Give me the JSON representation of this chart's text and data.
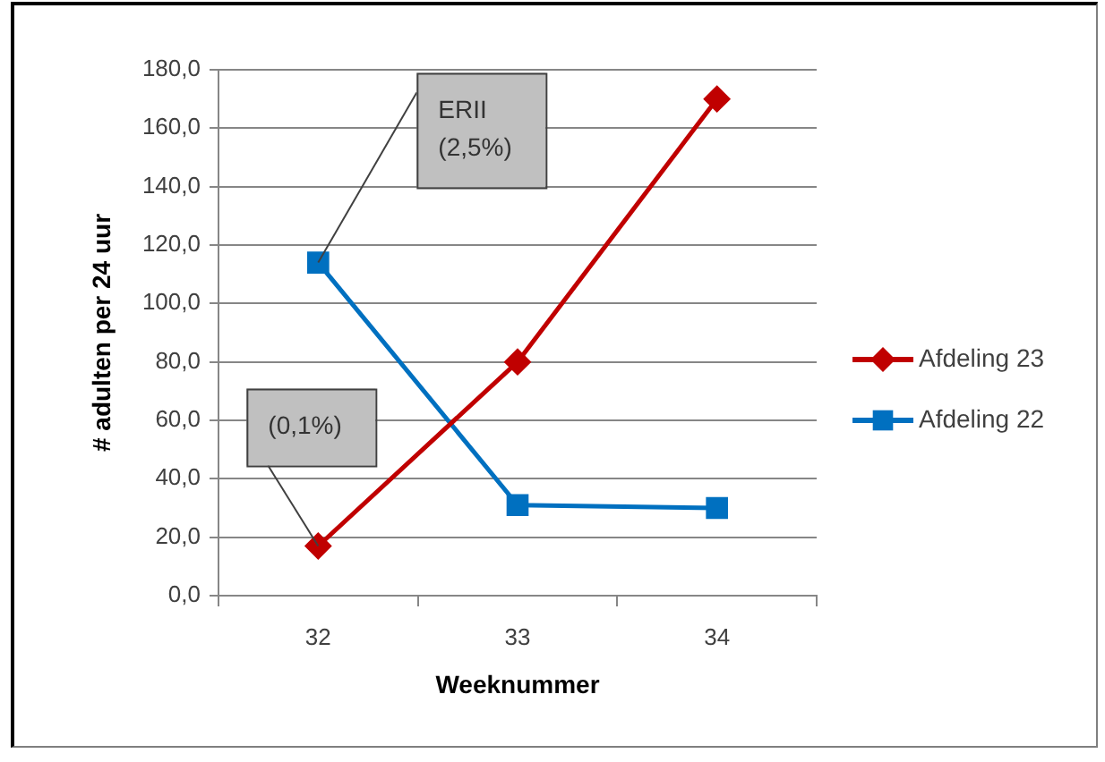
{
  "chart_data": {
    "type": "line",
    "xlabel": "Weeknummer",
    "ylabel": "# adulten per 24 uur",
    "categories": [
      "32",
      "33",
      "34"
    ],
    "series": [
      {
        "name": "Afdeling 23",
        "color": "#c00000",
        "marker": "diamond",
        "values": [
          17,
          80,
          170
        ]
      },
      {
        "name": "Afdeling 22",
        "color": "#0070c0",
        "marker": "square",
        "values": [
          114,
          31,
          30
        ]
      }
    ],
    "ylim": [
      0,
      180
    ],
    "yticks": [
      {
        "value": 0,
        "label": "0,0"
      },
      {
        "value": 20,
        "label": "20,0"
      },
      {
        "value": 40,
        "label": "40,0"
      },
      {
        "value": 60,
        "label": "60,0"
      },
      {
        "value": 80,
        "label": "80,0"
      },
      {
        "value": 100,
        "label": "100,0"
      },
      {
        "value": 120,
        "label": "120,0"
      },
      {
        "value": 140,
        "label": "140,0"
      },
      {
        "value": 160,
        "label": "160,0"
      },
      {
        "value": 180,
        "label": "180,0"
      }
    ],
    "grid": "y",
    "legend": "right",
    "annotations": [
      {
        "text": "ERII (2,5%)",
        "x": "32",
        "y": 114
      },
      {
        "text": "(0,1%)",
        "x": "32",
        "y": 17
      }
    ]
  }
}
